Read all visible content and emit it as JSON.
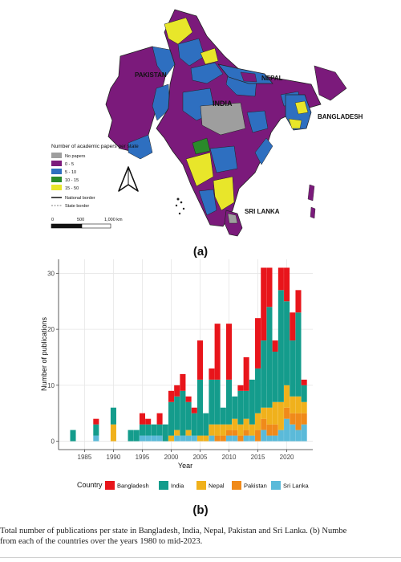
{
  "figure": {
    "caption_line1": "Total number of publications per state in Bangladesh, India, Nepal, Pakistan and Sri Lanka. (b) Numbe",
    "caption_line2": "from each of the countries over the years 1980 to mid-2023.",
    "colors": {
      "Bangladesh": "#e8151b",
      "India": "#149c8c",
      "Nepal": "#f0b11c",
      "Pakistan": "#f08a1a",
      "Sri Lanka": "#5bbad9"
    }
  },
  "map_panel": {
    "label": "(a)",
    "countries": [
      "PAKISTAN",
      "INDIA",
      "NEPAL",
      "BANGLADESH",
      "SRI LANKA"
    ],
    "legend_title": "Number of academic papers per state",
    "legend_items": [
      {
        "label": "No papers",
        "color": "#9e9e9e"
      },
      {
        "label": "0 - 5",
        "color": "#7b1a7b"
      },
      {
        "label": "5 - 10",
        "color": "#2e6fc0"
      },
      {
        "label": "10 - 15",
        "color": "#2a8a2a"
      },
      {
        "label": "15 - 50",
        "color": "#e8e62a"
      }
    ],
    "border_items": [
      "National border",
      "State border"
    ],
    "scale_labels": [
      "0",
      "500",
      "1,000 km"
    ]
  },
  "chart_data": {
    "type": "bar",
    "stacked": true,
    "panel_label": "(b)",
    "xlabel": "Year",
    "ylabel": "Number of publications",
    "xlim": [
      1980.5,
      2024.5
    ],
    "ylim": [
      -1.5,
      32.5
    ],
    "x_ticks": [
      1985,
      1990,
      1995,
      2000,
      2005,
      2010,
      2015,
      2020
    ],
    "y_ticks": [
      0,
      10,
      20,
      30
    ],
    "grid": true,
    "legend_title": "Country",
    "legend_position": "bottom",
    "x": [
      1983,
      1987,
      1990,
      1993,
      1994,
      1995,
      1996,
      1997,
      1998,
      1999,
      2000,
      2001,
      2002,
      2003,
      2004,
      2005,
      2006,
      2007,
      2008,
      2009,
      2010,
      2011,
      2012,
      2013,
      2014,
      2015,
      2016,
      2017,
      2018,
      2019,
      2020,
      2021,
      2022,
      2023
    ],
    "series": [
      {
        "name": "Sri Lanka",
        "values": [
          0,
          1,
          0,
          0,
          0,
          1,
          1,
          1,
          1,
          0,
          0,
          1,
          1,
          1,
          1,
          0,
          0,
          1,
          0,
          0,
          1,
          1,
          0,
          1,
          1,
          0,
          2,
          1,
          1,
          2,
          4,
          3,
          2,
          3
        ]
      },
      {
        "name": "Pakistan",
        "values": [
          0,
          0,
          0,
          0,
          0,
          0,
          0,
          0,
          0,
          0,
          0,
          0,
          0,
          0,
          0,
          0,
          0,
          0,
          1,
          1,
          1,
          1,
          1,
          1,
          0,
          2,
          2,
          2,
          2,
          0,
          2,
          2,
          3,
          2
        ]
      },
      {
        "name": "Nepal",
        "values": [
          0,
          0,
          3,
          0,
          0,
          0,
          0,
          0,
          0,
          0,
          1,
          1,
          0,
          1,
          0,
          1,
          1,
          2,
          2,
          2,
          1,
          2,
          2,
          2,
          2,
          3,
          2,
          3,
          4,
          5,
          4,
          3,
          3,
          2
        ]
      },
      {
        "name": "India",
        "values": [
          2,
          2,
          3,
          2,
          2,
          2,
          2,
          2,
          2,
          3,
          6,
          6,
          8,
          5,
          4,
          10,
          4,
          8,
          8,
          3,
          8,
          4,
          6,
          5,
          8,
          8,
          12,
          18,
          9,
          20,
          15,
          10,
          15,
          3
        ]
      },
      {
        "name": "Bangladesh",
        "values": [
          0,
          1,
          0,
          0,
          0,
          2,
          1,
          0,
          2,
          0,
          2,
          2,
          3,
          1,
          1,
          7,
          0,
          2,
          10,
          0,
          10,
          0,
          1,
          6,
          0,
          9,
          13,
          7,
          2,
          4,
          6,
          5,
          4,
          1
        ]
      }
    ]
  }
}
